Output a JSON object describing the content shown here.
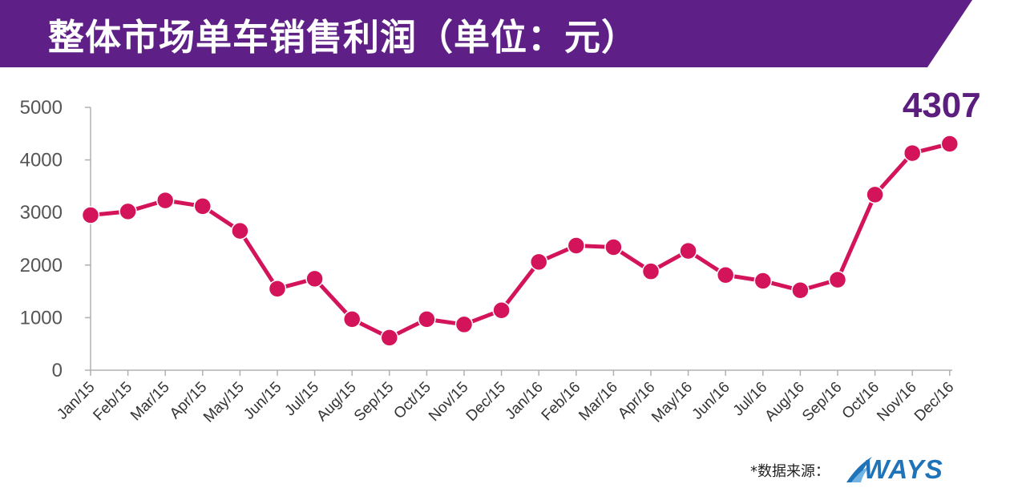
{
  "header": {
    "title": "整体市场单车销售利润（单位：元）",
    "background_color": "#5e1f86"
  },
  "chart_data": {
    "type": "line",
    "title": "整体市场单车销售利润（单位：元）",
    "xlabel": "",
    "ylabel": "",
    "ylim": [
      0,
      5000
    ],
    "yticks": [
      0,
      1000,
      2000,
      3000,
      4000,
      5000
    ],
    "grid": false,
    "legend": "none",
    "line_color": "#d4145a",
    "categories": [
      "Jan/15",
      "Feb/15",
      "Mar/15",
      "Apr/15",
      "May/15",
      "Jun/15",
      "Jul/15",
      "Aug/15",
      "Sep/15",
      "Oct/15",
      "Nov/15",
      "Dec/15",
      "Jan/16",
      "Feb/16",
      "Mar/16",
      "Apr/16",
      "May/16",
      "Jun/16",
      "Jul/16",
      "Aug/16",
      "Sep/16",
      "Oct/16",
      "Nov/16",
      "Dec/16"
    ],
    "values": [
      2950,
      3020,
      3230,
      3120,
      2650,
      1550,
      1740,
      970,
      620,
      970,
      870,
      1140,
      2060,
      2370,
      2340,
      1880,
      2270,
      1810,
      1700,
      1520,
      1720,
      3340,
      4130,
      4307
    ],
    "annotations": [
      {
        "category": "Dec/16",
        "text": "4307"
      }
    ]
  },
  "footer": {
    "source_label": "*数据来源：",
    "logo_text": "WAYS",
    "logo_color": "#1f73b8"
  }
}
